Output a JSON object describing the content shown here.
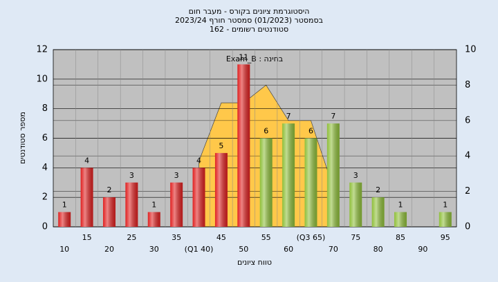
{
  "chart_data": {
    "type": "bar",
    "title": "היסטוגרמת ציונים בקורס - מעבר חום",
    "subtitle": [
      "בסמסטר  (01/2023)  סמסטר חורף 2023/24",
      "סטודנטים רשומים - 162"
    ],
    "annotation": "בחינה : Exam_B",
    "x_label": "טווח ציונים",
    "y_label": "מספר סטודנטים",
    "categories": [
      "10",
      "15",
      "20",
      "25",
      "30",
      "35",
      "(Q1 40)",
      "45",
      "50",
      "55",
      "60",
      "(Q3 65)",
      "70",
      "75",
      "80",
      "85",
      "90",
      "95"
    ],
    "values": [
      1,
      4,
      2,
      3,
      1,
      3,
      4,
      5,
      11,
      6,
      7,
      6,
      7,
      3,
      2,
      1,
      0,
      1
    ],
    "colors": [
      "#e02020",
      "#e02020",
      "#e02020",
      "#e02020",
      "#e02020",
      "#e02020",
      "#e02020",
      "#e02020",
      "#e02020",
      "#8fbf3a",
      "#8fbf3a",
      "#8fbf3a",
      "#8fbf3a",
      "#8fbf3a",
      "#8fbf3a",
      "#8fbf3a",
      "#8fbf3a",
      "#8fbf3a"
    ],
    "area": {
      "color": "#ffc84a",
      "axis": "y2",
      "values": [
        null,
        null,
        null,
        null,
        null,
        null,
        3.7,
        7,
        7,
        8,
        6,
        6,
        2.2,
        null,
        null,
        null,
        null,
        null
      ]
    },
    "ylim": [
      0,
      12
    ],
    "yticks": [
      0,
      2,
      4,
      6,
      8,
      10,
      12
    ],
    "y2lim": [
      0,
      10
    ],
    "y2ticks": [
      0,
      2,
      4,
      6,
      8,
      10
    ],
    "grid": true
  }
}
